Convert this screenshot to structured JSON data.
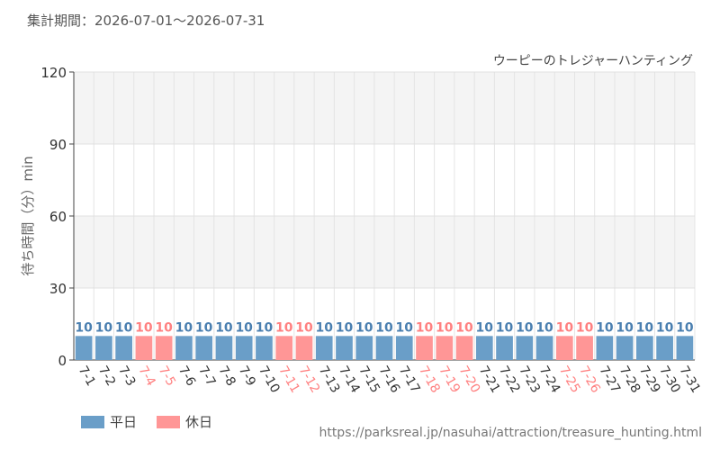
{
  "header": {
    "period_label": "集計期間：2026-07-01～2026-07-31"
  },
  "footer": {
    "source_url": "https://parksreal.jp/nasuhai/attraction/treasure_hunting.html"
  },
  "colors": {
    "weekday": "#6a9ec8",
    "holiday": "#ff9696",
    "weekday_text": "#4a7fb0",
    "holiday_text": "#ff8080"
  },
  "chart_data": {
    "type": "bar",
    "title": "ウーピーのトレジャーハンティング",
    "ylabel": "待ち時間（分）min",
    "xlabel": "",
    "ylim": [
      0,
      120
    ],
    "yticks": [
      0,
      30,
      60,
      90,
      120
    ],
    "grid": true,
    "legend_position": "bottom-left",
    "legend": [
      {
        "key": "weekday",
        "label": "平日"
      },
      {
        "key": "holiday",
        "label": "休日"
      }
    ],
    "categories": [
      "7-1",
      "7-2",
      "7-3",
      "7-4",
      "7-5",
      "7-6",
      "7-7",
      "7-8",
      "7-9",
      "7-10",
      "7-11",
      "7-12",
      "7-13",
      "7-14",
      "7-15",
      "7-16",
      "7-17",
      "7-18",
      "7-19",
      "7-20",
      "7-21",
      "7-22",
      "7-23",
      "7-24",
      "7-25",
      "7-26",
      "7-27",
      "7-28",
      "7-29",
      "7-30",
      "7-31"
    ],
    "values": [
      10,
      10,
      10,
      10,
      10,
      10,
      10,
      10,
      10,
      10,
      10,
      10,
      10,
      10,
      10,
      10,
      10,
      10,
      10,
      10,
      10,
      10,
      10,
      10,
      10,
      10,
      10,
      10,
      10,
      10,
      10
    ],
    "day_type": [
      "weekday",
      "weekday",
      "weekday",
      "holiday",
      "holiday",
      "weekday",
      "weekday",
      "weekday",
      "weekday",
      "weekday",
      "holiday",
      "holiday",
      "weekday",
      "weekday",
      "weekday",
      "weekday",
      "weekday",
      "holiday",
      "holiday",
      "holiday",
      "weekday",
      "weekday",
      "weekday",
      "weekday",
      "holiday",
      "holiday",
      "weekday",
      "weekday",
      "weekday",
      "weekday",
      "weekday"
    ]
  }
}
